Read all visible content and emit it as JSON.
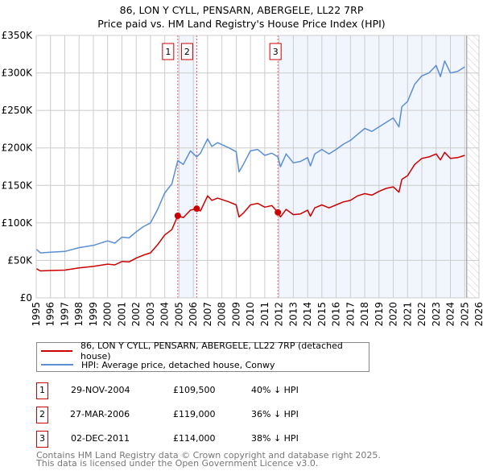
{
  "chart_data": {
    "type": "line",
    "title": "86, LON Y CYLL, PENSARN, ABERGELE, LL22 7RP",
    "subtitle": "Price paid vs. HM Land Registry's House Price Index (HPI)",
    "xlim": [
      1995,
      2026
    ],
    "ylim": [
      0,
      350000
    ],
    "y_ticks": [
      0,
      50000,
      100000,
      150000,
      200000,
      250000,
      300000,
      350000
    ],
    "y_tick_labels": [
      "£0",
      "£50K",
      "£100K",
      "£150K",
      "£200K",
      "£250K",
      "£300K",
      "£350K"
    ],
    "x_ticks": [
      "1995",
      "1996",
      "1997",
      "1998",
      "1999",
      "2000",
      "2001",
      "2002",
      "2003",
      "2004",
      "2005",
      "2006",
      "2007",
      "2008",
      "2009",
      "2010",
      "2011",
      "2012",
      "2013",
      "2014",
      "2015",
      "2016",
      "2017",
      "2018",
      "2019",
      "2020",
      "2021",
      "2022",
      "2023",
      "2024",
      "2025",
      "2026"
    ],
    "grid": true,
    "series": [
      {
        "name": "86, LON Y CYLL, PENSARN, ABERGELE, LL22 7RP (detached house)",
        "color": "#cc0000",
        "x": [
          1995,
          1995.3,
          1996,
          1997,
          1998,
          1999,
          2000,
          2000.5,
          2001,
          2001.5,
          2002,
          2002.5,
          2003,
          2003.5,
          2004,
          2004.5,
          2004.91,
          2005.3,
          2005.8,
          2006.24,
          2006.5,
          2007,
          2007.3,
          2007.7,
          2008.5,
          2009,
          2009.2,
          2009.5,
          2010,
          2010.5,
          2011,
          2011.5,
          2011.92,
          2012.1,
          2012.5,
          2013,
          2013.5,
          2014,
          2014.2,
          2014.5,
          2015,
          2015.5,
          2016,
          2016.5,
          2017,
          2017.5,
          2018,
          2018.5,
          2019,
          2019.5,
          2020,
          2020.4,
          2020.6,
          2021,
          2021.5,
          2022,
          2022.5,
          2023,
          2023.3,
          2023.6,
          2024,
          2024.5,
          2025
        ],
        "y": [
          39000,
          36000,
          36500,
          37000,
          40000,
          42000,
          45000,
          44000,
          48500,
          48000,
          53000,
          57000,
          60000,
          71000,
          84000,
          91000,
          109500,
          107000,
          117000,
          119000,
          116000,
          136000,
          130000,
          133000,
          128000,
          124000,
          108000,
          113000,
          124000,
          126000,
          121000,
          123000,
          114000,
          108000,
          118000,
          111000,
          112000,
          117000,
          109000,
          120000,
          124000,
          120000,
          124000,
          128000,
          130000,
          136000,
          139000,
          137000,
          142000,
          146000,
          148000,
          141000,
          158000,
          163000,
          178000,
          186000,
          188000,
          192000,
          184000,
          194000,
          186000,
          187000,
          190000
        ]
      },
      {
        "name": "HPI: Average price, detached house, Conwy",
        "color": "#5b8fd4",
        "x": [
          1995,
          1995.3,
          1996,
          1997,
          1998,
          1999,
          2000,
          2000.5,
          2001,
          2001.5,
          2002,
          2002.5,
          2003,
          2003.5,
          2004,
          2004.5,
          2004.91,
          2005.3,
          2005.8,
          2006.24,
          2006.5,
          2007,
          2007.3,
          2007.7,
          2008.5,
          2009,
          2009.2,
          2009.5,
          2010,
          2010.5,
          2011,
          2011.5,
          2011.92,
          2012.1,
          2012.5,
          2013,
          2013.5,
          2014,
          2014.2,
          2014.5,
          2015,
          2015.5,
          2016,
          2016.5,
          2017,
          2017.5,
          2018,
          2018.5,
          2019,
          2019.5,
          2020,
          2020.4,
          2020.6,
          2021,
          2021.5,
          2022,
          2022.5,
          2023,
          2023.3,
          2023.6,
          2024,
          2024.5,
          2025
        ],
        "y": [
          65000,
          60000,
          61000,
          62000,
          67000,
          70000,
          76000,
          73000,
          81000,
          80000,
          88000,
          95000,
          100000,
          118000,
          140000,
          152000,
          183000,
          178000,
          196000,
          188000,
          193000,
          212000,
          202000,
          207000,
          200000,
          195000,
          168000,
          178000,
          196000,
          198000,
          190000,
          193000,
          188000,
          175000,
          192000,
          180000,
          182000,
          187000,
          176000,
          192000,
          198000,
          192000,
          198000,
          205000,
          210000,
          218000,
          226000,
          222000,
          228000,
          234000,
          240000,
          228000,
          255000,
          262000,
          285000,
          296000,
          300000,
          310000,
          295000,
          316000,
          300000,
          302000,
          308000
        ]
      }
    ],
    "sales": [
      {
        "label": "1",
        "x": 2004.91,
        "y": 109500
      },
      {
        "label": "2",
        "x": 2006.24,
        "y": 119000
      },
      {
        "label": "3",
        "x": 2011.92,
        "y": 114000
      }
    ],
    "shaded_ranges": [
      [
        2004.91,
        2006.24
      ],
      [
        2011.92,
        2025.1
      ]
    ],
    "forecast_from": 2025.2,
    "legend_placement": "below"
  },
  "legend": {
    "property": "86, LON Y CYLL, PENSARN, ABERGELE, LL22 7RP (detached house)",
    "hpi": "HPI: Average price, detached house, Conwy"
  },
  "transactions": [
    {
      "num": "1",
      "date": "29-NOV-2004",
      "price": "£109,500",
      "hpi": "40% ↓ HPI"
    },
    {
      "num": "2",
      "date": "27-MAR-2006",
      "price": "£119,000",
      "hpi": "36% ↓ HPI"
    },
    {
      "num": "3",
      "date": "02-DEC-2011",
      "price": "£114,000",
      "hpi": "38% ↓ HPI"
    }
  ],
  "footer": {
    "line1": "Contains HM Land Registry data © Crown copyright and database right 2025.",
    "line2": "This data is licensed under the Open Government Licence v3.0."
  }
}
